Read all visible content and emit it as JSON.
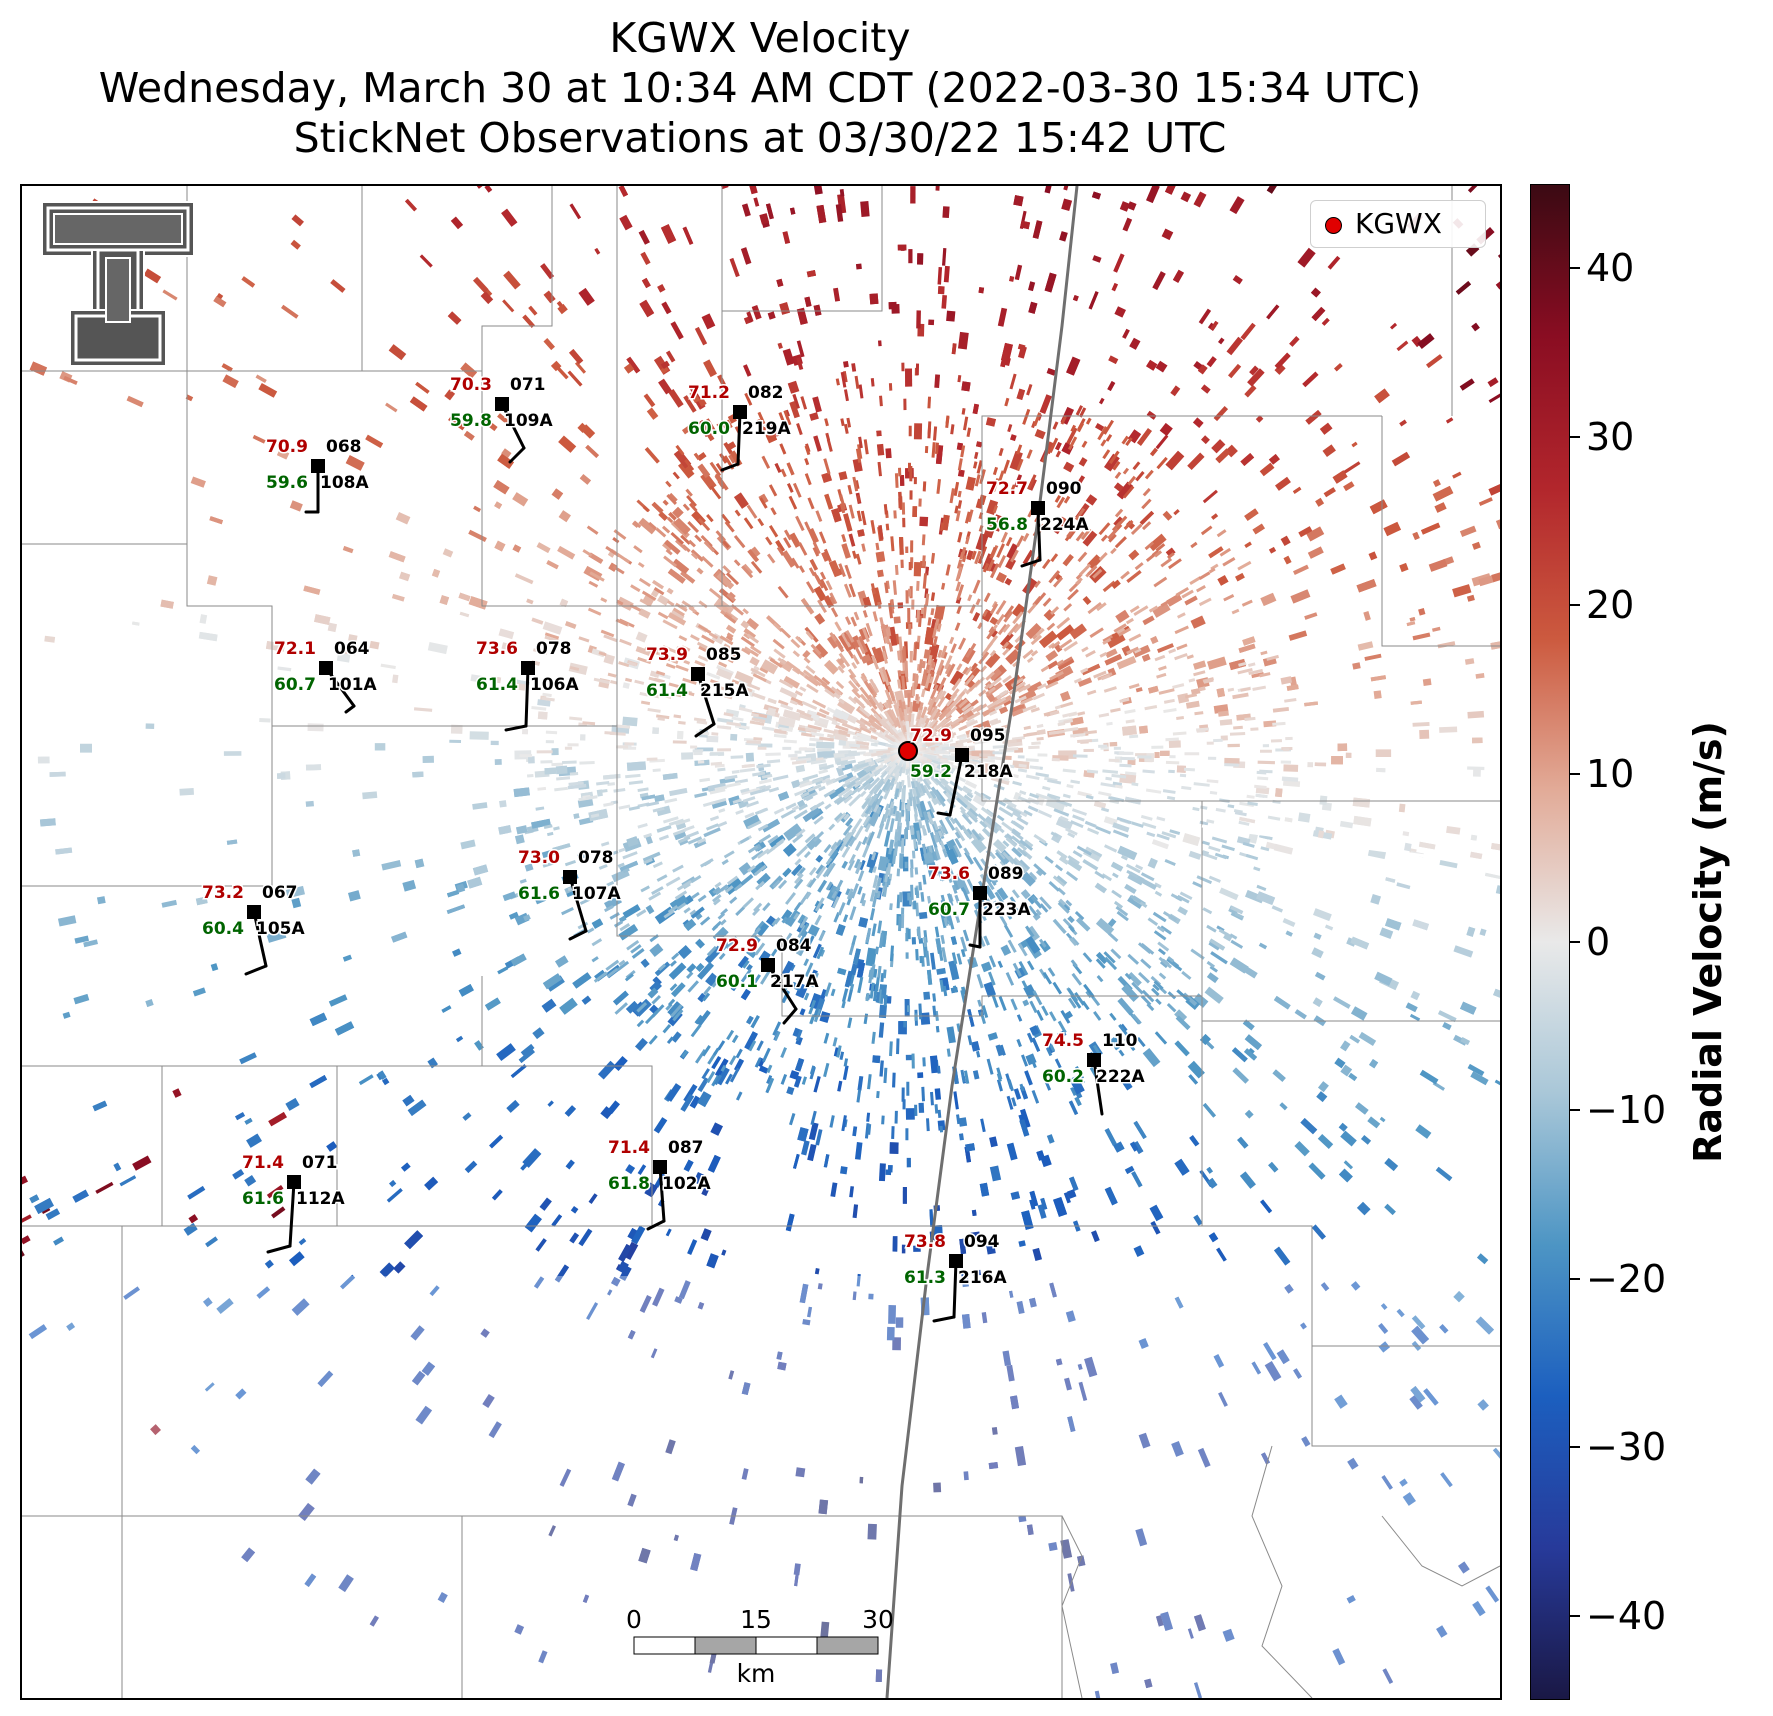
{
  "title": {
    "line1": "KGWX Velocity",
    "line2": "Wednesday, March 30 at 10:34 AM CDT (2022-03-30 15:34 UTC)",
    "line3": "StickNet Observations at 03/30/22 15:42 UTC"
  },
  "legend": {
    "label": "KGWX",
    "marker_color": "#e00000"
  },
  "colorbar": {
    "label": "Radial Velocity (m/s)",
    "range": [
      -45,
      45
    ],
    "ticks": [
      {
        "value": 40,
        "label": "40"
      },
      {
        "value": 30,
        "label": "30"
      },
      {
        "value": 20,
        "label": "20"
      },
      {
        "value": 10,
        "label": "10"
      },
      {
        "value": 0,
        "label": "0"
      },
      {
        "value": -10,
        "label": "−10"
      },
      {
        "value": -20,
        "label": "−20"
      },
      {
        "value": -30,
        "label": "−30"
      },
      {
        "value": -40,
        "label": "−40"
      }
    ],
    "colors": [
      "#1a1845",
      "#273a9a",
      "#1c5fbf",
      "#4d95c4",
      "#a9c7d8",
      "#e9e9e9",
      "#e2ab98",
      "#cc5a3f",
      "#b2262c",
      "#8a0d22",
      "#3b0a13"
    ]
  },
  "logo": {
    "name": "Texas Tech double-T logo",
    "colors": [
      "#555555",
      "#ffffff"
    ]
  },
  "scale_bar": {
    "labels": [
      "0",
      "15",
      "30"
    ],
    "unit": "km"
  },
  "stations": [
    {
      "id": "109A",
      "temp": "70.3",
      "dew": "59.8",
      "dir": "071"
    },
    {
      "id": "219A",
      "temp": "71.2",
      "dew": "60.0",
      "dir": "082"
    },
    {
      "id": "108A",
      "temp": "70.9",
      "dew": "59.6",
      "dir": "068"
    },
    {
      "id": "224A",
      "temp": "72.7",
      "dew": "56.8",
      "dir": "090"
    },
    {
      "id": "101A",
      "temp": "72.1",
      "dew": "60.7",
      "dir": "064"
    },
    {
      "id": "106A",
      "temp": "73.6",
      "dew": "61.4",
      "dir": "078"
    },
    {
      "id": "215A",
      "temp": "73.9",
      "dew": "61.4",
      "dir": "085"
    },
    {
      "id": "218A",
      "temp": "72.9",
      "dew": "59.2",
      "dir": "095"
    },
    {
      "id": "107A",
      "temp": "73.0",
      "dew": "61.6",
      "dir": "078"
    },
    {
      "id": "105A",
      "temp": "73.2",
      "dew": "60.4",
      "dir": "067"
    },
    {
      "id": "223A",
      "temp": "73.6",
      "dew": "60.7",
      "dir": "089"
    },
    {
      "id": "217A",
      "temp": "72.9",
      "dew": "60.1",
      "dir": "084"
    },
    {
      "id": "222A",
      "temp": "74.5",
      "dew": "60.2",
      "dir": "110"
    },
    {
      "id": "112A",
      "temp": "71.4",
      "dew": "61.6",
      "dir": "071"
    },
    {
      "id": "102A",
      "temp": "71.4",
      "dew": "61.8",
      "dir": "087"
    },
    {
      "id": "216A",
      "temp": "73.8",
      "dew": "61.3",
      "dir": "094"
    }
  ]
}
